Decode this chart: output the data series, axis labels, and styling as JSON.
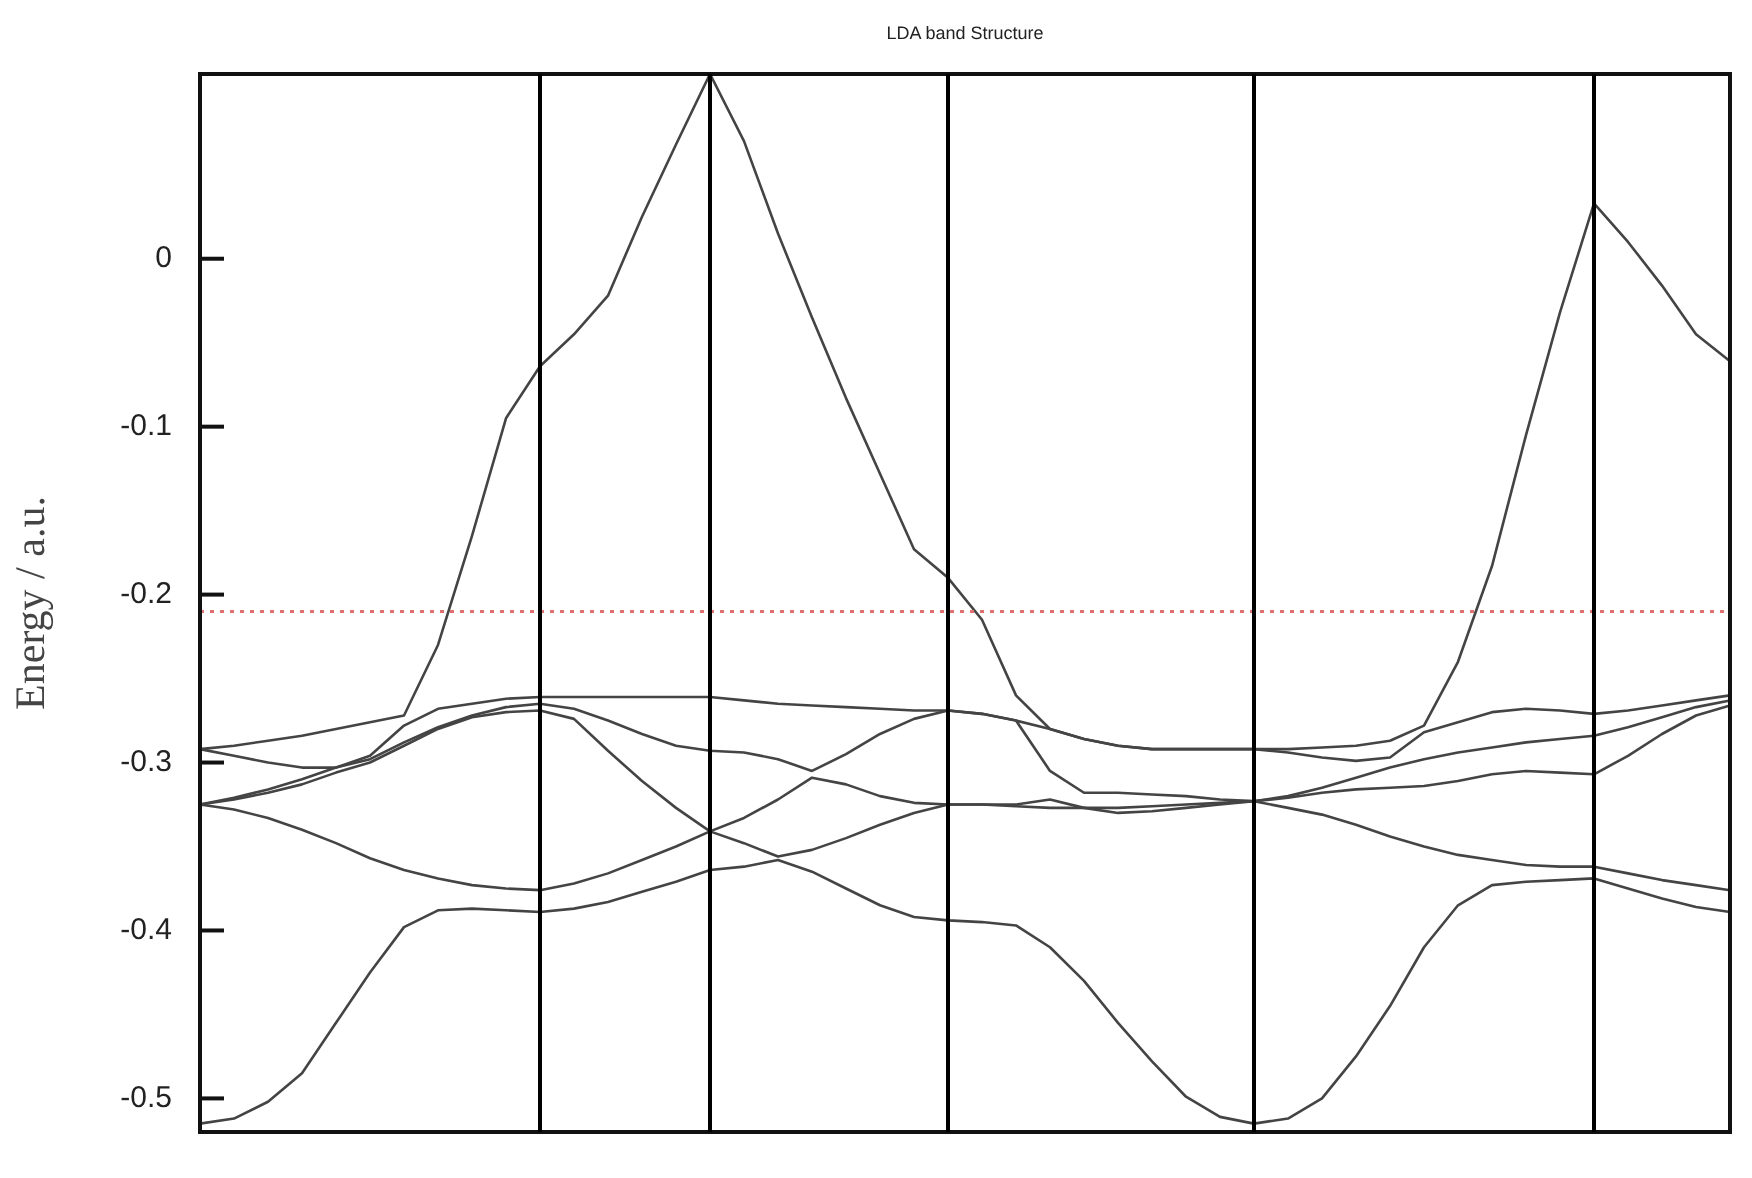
{
  "chart_data": {
    "type": "line",
    "title": "LDA band Structure",
    "ylabel": "Energy / a.u.",
    "categories": [
      null,
      null,
      null,
      null,
      null,
      null,
      null,
      null,
      null,
      null,
      null,
      null,
      null,
      null,
      null,
      null,
      null,
      null,
      null,
      null,
      null,
      null,
      null,
      null,
      null,
      null,
      null,
      null,
      null,
      null,
      null,
      null,
      null,
      null,
      null,
      null,
      null,
      null,
      null,
      null,
      null,
      null,
      null,
      null,
      null,
      null
    ],
    "series": [
      {
        "color": "#444444",
        "values": [
          -0.515,
          -0.512,
          -0.502,
          -0.485,
          -0.455,
          -0.425,
          -0.398,
          -0.388,
          -0.387,
          -0.388,
          -0.389,
          -0.387,
          -0.383,
          -0.377,
          -0.371,
          -0.364,
          -0.362,
          -0.358,
          -0.365,
          -0.375,
          -0.385,
          -0.392,
          -0.394,
          -0.395,
          -0.397,
          -0.41,
          -0.43,
          -0.455,
          -0.478,
          -0.499,
          -0.511,
          -0.515,
          -0.512,
          -0.5,
          -0.475,
          -0.445,
          -0.41,
          -0.385,
          -0.373,
          -0.371,
          -0.37,
          -0.369,
          -0.375,
          -0.381,
          -0.386,
          -0.389
        ]
      },
      {
        "color": "#444444",
        "values": [
          -0.325,
          -0.328,
          -0.333,
          -0.34,
          -0.348,
          -0.357,
          -0.364,
          -0.369,
          -0.373,
          -0.375,
          -0.376,
          -0.372,
          -0.366,
          -0.358,
          -0.35,
          -0.341,
          -0.348,
          -0.356,
          -0.352,
          -0.345,
          -0.337,
          -0.33,
          -0.325,
          -0.325,
          -0.326,
          -0.327,
          -0.327,
          -0.33,
          -0.329,
          -0.327,
          -0.325,
          -0.323,
          -0.327,
          -0.331,
          -0.337,
          -0.344,
          -0.35,
          -0.355,
          -0.358,
          -0.361,
          -0.362,
          -0.362,
          -0.366,
          -0.37,
          -0.373,
          -0.376
        ]
      },
      {
        "color": "#444444",
        "values": [
          -0.325,
          -0.322,
          -0.318,
          -0.313,
          -0.306,
          -0.3,
          -0.29,
          -0.28,
          -0.273,
          -0.27,
          -0.269,
          -0.274,
          -0.293,
          -0.311,
          -0.327,
          -0.341,
          -0.333,
          -0.322,
          -0.309,
          -0.313,
          -0.32,
          -0.324,
          -0.325,
          -0.325,
          -0.325,
          -0.322,
          -0.327,
          -0.327,
          -0.326,
          -0.325,
          -0.324,
          -0.323,
          -0.321,
          -0.318,
          -0.316,
          -0.315,
          -0.314,
          -0.311,
          -0.307,
          -0.305,
          -0.306,
          -0.307,
          -0.296,
          -0.283,
          -0.272,
          -0.266
        ]
      },
      {
        "color": "#444444",
        "values": [
          -0.325,
          -0.321,
          -0.316,
          -0.31,
          -0.303,
          -0.298,
          -0.288,
          -0.279,
          -0.272,
          -0.267,
          -0.265,
          -0.268,
          -0.275,
          -0.283,
          -0.29,
          -0.293,
          -0.294,
          -0.298,
          -0.305,
          -0.295,
          -0.283,
          -0.274,
          -0.269,
          -0.271,
          -0.275,
          -0.305,
          -0.318,
          -0.318,
          -0.319,
          -0.32,
          -0.322,
          -0.323,
          -0.32,
          -0.315,
          -0.309,
          -0.303,
          -0.298,
          -0.294,
          -0.291,
          -0.288,
          -0.286,
          -0.284,
          -0.279,
          -0.273,
          -0.267,
          -0.263
        ]
      },
      {
        "color": "#444444",
        "values": [
          -0.292,
          -0.296,
          -0.3,
          -0.303,
          -0.303,
          -0.296,
          -0.278,
          -0.268,
          -0.265,
          -0.262,
          -0.261,
          -0.261,
          -0.261,
          -0.261,
          -0.261,
          -0.261,
          -0.263,
          -0.265,
          -0.266,
          -0.267,
          -0.268,
          -0.269,
          -0.269,
          -0.271,
          -0.275,
          -0.28,
          -0.286,
          -0.29,
          -0.292,
          -0.292,
          -0.292,
          -0.292,
          -0.294,
          -0.297,
          -0.299,
          -0.297,
          -0.282,
          -0.276,
          -0.27,
          -0.268,
          -0.269,
          -0.271,
          -0.269,
          -0.266,
          -0.263,
          -0.26
        ]
      },
      {
        "color": "#444444",
        "values": [
          -0.292,
          -0.29,
          -0.287,
          -0.284,
          -0.28,
          -0.276,
          -0.272,
          -0.23,
          -0.165,
          -0.095,
          -0.064,
          -0.045,
          -0.022,
          0.025,
          0.068,
          0.11,
          0.07,
          0.015,
          -0.035,
          -0.083,
          -0.128,
          -0.173,
          -0.19,
          -0.215,
          -0.26,
          -0.28,
          -0.286,
          -0.29,
          -0.292,
          -0.292,
          -0.292,
          -0.292,
          -0.292,
          -0.291,
          -0.29,
          -0.287,
          -0.278,
          -0.24,
          -0.183,
          -0.105,
          -0.032,
          0.033,
          0.01,
          -0.016,
          -0.045,
          -0.061
        ]
      }
    ],
    "ylim": [
      -0.52,
      0.11
    ],
    "yticks": [
      -0.5,
      -0.4,
      -0.3,
      -0.2,
      -0.1,
      0
    ],
    "ref_lines": [
      {
        "axis": "y",
        "value": -0.21,
        "color": "#e07070",
        "line_style": "dotted"
      }
    ],
    "grid": false,
    "legend": false,
    "tick_labels": "y"
  }
}
